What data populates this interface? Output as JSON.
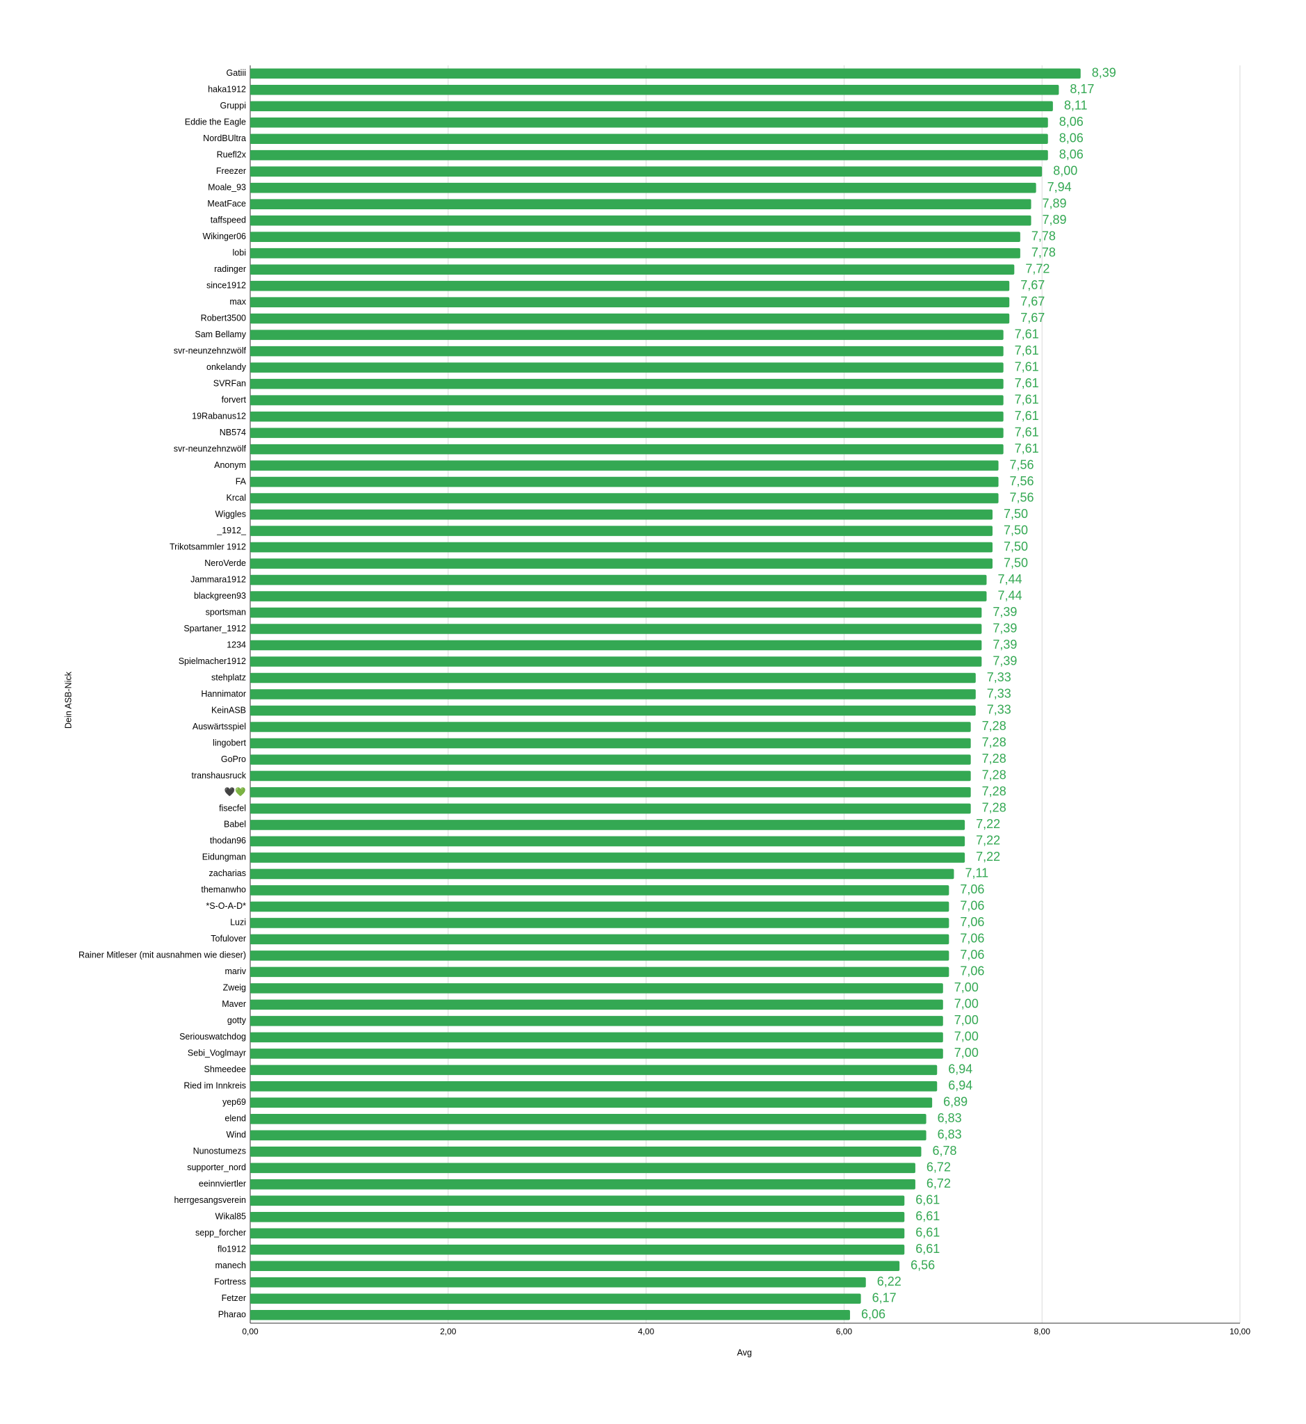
{
  "chart_data": {
    "type": "bar",
    "orientation": "horizontal",
    "x_label": "Avg",
    "y_label": "Dein ASB-Nick",
    "color": "#34a853",
    "grid": true,
    "categories": [
      "Gatiii",
      "haka1912",
      "Gruppi",
      "Eddie the Eagle",
      "NordBUltra",
      "Ruefl2x",
      "Freezer",
      "Moale_93",
      "MeatFace",
      "taffspeed",
      "Wikinger06",
      "lobi",
      "radinger",
      "since1912",
      "max",
      "Robert3500",
      "Sam Bellamy",
      "svr-neunzehnzwölf",
      "onkelandy",
      "SVRFan",
      "forvert",
      "19Rabanus12",
      "NB574",
      "svr-neunzehnzwölf",
      "Anonym",
      "FA",
      "Krcal",
      "Wiggles",
      "_1912_",
      "Trikotsammler 1912",
      "NeroVerde",
      "Jammara1912",
      "blackgreen93",
      "sportsman",
      "Spartaner_1912",
      "1234",
      "Spielmacher1912",
      "stehplatz",
      "Hannimator",
      "KeinASB",
      "Auswärtsspiel",
      "lingobert",
      "GoPro",
      "transhausruck",
      "🖤💚",
      "fisecfel",
      "Babel",
      "thodan96",
      "Eidungman",
      "zacharias",
      "themanwho",
      "*S-O-A-D*",
      "Luzi",
      "Tofulover",
      "Rainer Mitleser (mit ausnahmen wie dieser)",
      "mariv",
      "Zweig",
      "Maver",
      "gotty",
      "Seriouswatchdog",
      "Sebi_Voglmayr",
      "Shmeedee",
      "Ried im Innkreis",
      "yep69",
      "elend",
      "Wind",
      "Nunostumezs",
      "supporter_nord",
      "eeinnviertler",
      "herrgesangsverein",
      "Wikal85",
      "sepp_forcher",
      "flo1912",
      "manech",
      "Fortress",
      "Fetzer",
      "Pharao"
    ],
    "values": [
      8.39,
      8.17,
      8.11,
      8.06,
      8.06,
      8.06,
      8.0,
      7.94,
      7.89,
      7.89,
      7.78,
      7.78,
      7.72,
      7.67,
      7.67,
      7.67,
      7.61,
      7.61,
      7.61,
      7.61,
      7.61,
      7.61,
      7.61,
      7.61,
      7.56,
      7.56,
      7.56,
      7.5,
      7.5,
      7.5,
      7.5,
      7.44,
      7.44,
      7.39,
      7.39,
      7.39,
      7.39,
      7.33,
      7.33,
      7.33,
      7.28,
      7.28,
      7.28,
      7.28,
      7.28,
      7.28,
      7.22,
      7.22,
      7.22,
      7.11,
      7.06,
      7.06,
      7.06,
      7.06,
      7.06,
      7.06,
      7.0,
      7.0,
      7.0,
      7.0,
      7.0,
      6.94,
      6.94,
      6.89,
      6.83,
      6.83,
      6.78,
      6.72,
      6.72,
      6.61,
      6.61,
      6.61,
      6.61,
      6.56,
      6.22,
      6.17,
      6.06
    ],
    "value_labels": [
      "8,39",
      "8,17",
      "8,11",
      "8,06",
      "8,06",
      "8,06",
      "8,00",
      "7,94",
      "7,89",
      "7,89",
      "7,78",
      "7,78",
      "7,72",
      "7,67",
      "7,67",
      "7,67",
      "7,61",
      "7,61",
      "7,61",
      "7,61",
      "7,61",
      "7,61",
      "7,61",
      "7,61",
      "7,56",
      "7,56",
      "7,56",
      "7,50",
      "7,50",
      "7,50",
      "7,50",
      "7,44",
      "7,44",
      "7,39",
      "7,39",
      "7,39",
      "7,39",
      "7,33",
      "7,33",
      "7,33",
      "7,28",
      "7,28",
      "7,28",
      "7,28",
      "7,28",
      "7,28",
      "7,22",
      "7,22",
      "7,22",
      "7,11",
      "7,06",
      "7,06",
      "7,06",
      "7,06",
      "7,06",
      "7,06",
      "7,00",
      "7,00",
      "7,00",
      "7,00",
      "7,00",
      "6,94",
      "6,94",
      "6,89",
      "6,83",
      "6,83",
      "6,78",
      "6,72",
      "6,72",
      "6,61",
      "6,61",
      "6,61",
      "6,61",
      "6,56",
      "6,22",
      "6,17",
      "6,06"
    ],
    "xlim": [
      0,
      10
    ],
    "xticks": [
      {
        "value": 0,
        "label": "0,00"
      },
      {
        "value": 2,
        "label": "2,00"
      },
      {
        "value": 4,
        "label": "4,00"
      },
      {
        "value": 6,
        "label": "6,00"
      },
      {
        "value": 8,
        "label": "8,00"
      },
      {
        "value": 10,
        "label": "10,00"
      }
    ]
  }
}
